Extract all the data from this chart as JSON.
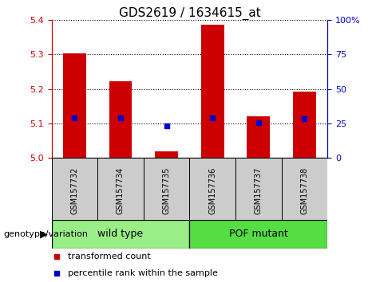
{
  "title": "GDS2619 / 1634615_at",
  "samples": [
    "GSM157732",
    "GSM157734",
    "GSM157735",
    "GSM157736",
    "GSM157737",
    "GSM157738"
  ],
  "red_bar_values": [
    5.302,
    5.222,
    5.02,
    5.385,
    5.12,
    5.192
  ],
  "blue_dot_values": [
    5.115,
    5.115,
    5.093,
    5.115,
    5.103,
    5.113
  ],
  "bar_base": 5.0,
  "ylim_left": [
    5.0,
    5.4
  ],
  "ylim_right": [
    0,
    100
  ],
  "yticks_left": [
    5.0,
    5.1,
    5.2,
    5.3,
    5.4
  ],
  "yticks_right": [
    0,
    25,
    50,
    75,
    100
  ],
  "ytick_labels_right": [
    "0",
    "25",
    "50",
    "75",
    "100%"
  ],
  "red_color": "#cc0000",
  "blue_color": "#0000cc",
  "bar_width": 0.5,
  "groups": [
    {
      "label": "wild type",
      "indices": [
        0,
        1,
        2
      ],
      "color": "#99ee88"
    },
    {
      "label": "POF mutant",
      "indices": [
        3,
        4,
        5
      ],
      "color": "#55dd44"
    }
  ],
  "group_label_prefix": "genotype/variation",
  "legend_items": [
    {
      "label": "transformed count",
      "color": "#cc0000"
    },
    {
      "label": "percentile rank within the sample",
      "color": "#0000cc"
    }
  ],
  "grid_color": "black",
  "grid_style": "dotted",
  "title_fontsize": 11,
  "tick_fontsize": 8,
  "sample_fontsize": 7,
  "group_fontsize": 9,
  "legend_fontsize": 8
}
